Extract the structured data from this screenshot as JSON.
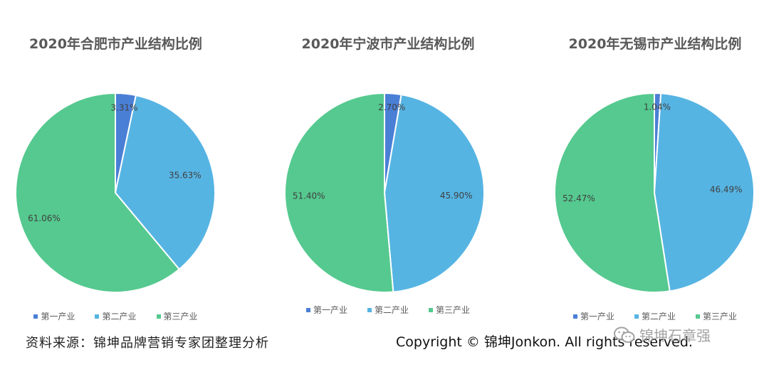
{
  "colors": {
    "primary": "#4A7FD6",
    "secondary": "#56B4E3",
    "tertiary": "#55C98F"
  },
  "chart_data": [
    {
      "type": "pie",
      "title": "2020年合肥市产业结构比例",
      "categories": [
        "第一产业",
        "第二产业",
        "第三产业"
      ],
      "values": [
        3.31,
        35.63,
        61.06
      ],
      "labels": [
        "3.31%",
        "35.63%",
        "61.06%"
      ],
      "legend_position": "bottom"
    },
    {
      "type": "pie",
      "title": "2020年宁波市产业结构比例",
      "categories": [
        "第一产业",
        "第二产业",
        "第三产业"
      ],
      "values": [
        2.7,
        45.9,
        51.4
      ],
      "labels": [
        "2.70%",
        "45.90%",
        "51.40%"
      ],
      "legend_position": "bottom"
    },
    {
      "type": "pie",
      "title": "2020年无锡市产业结构比例",
      "categories": [
        "第一产业",
        "第二产业",
        "第三产业"
      ],
      "values": [
        1.04,
        46.49,
        52.47
      ],
      "labels": [
        "1.04%",
        "46.49%",
        "52.47%"
      ],
      "legend_position": "bottom"
    }
  ],
  "footer": {
    "source": "资料来源：锦坤品牌营销专家团整理分析",
    "copyright": "Copyright © 锦坤Jonkon. All rights reserved.",
    "watermark": "锦坤石章强"
  }
}
